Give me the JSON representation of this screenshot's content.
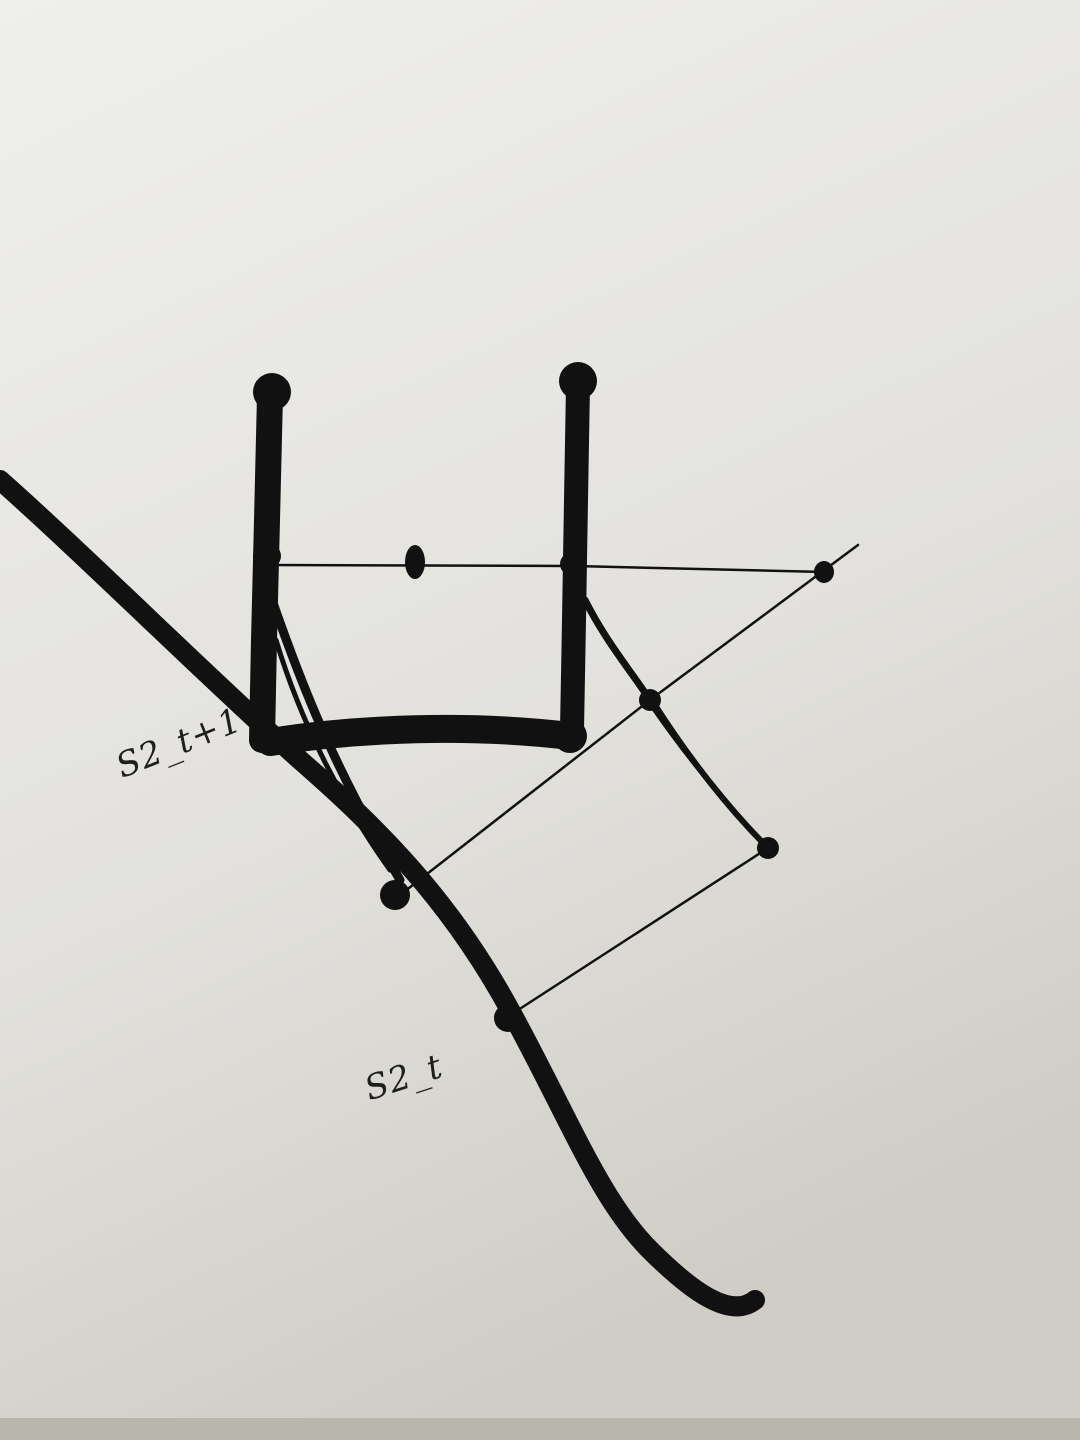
{
  "diagram": {
    "labels": {
      "upper": "S2_t+1",
      "lower": "S2_t"
    },
    "colors": {
      "paper_top": "#eeeeec",
      "paper_bottom": "#cfcdc6",
      "ink": "#111111"
    }
  }
}
